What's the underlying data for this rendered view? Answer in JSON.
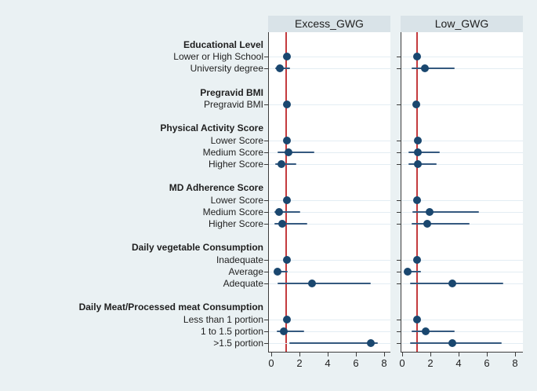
{
  "figure": {
    "background_color": "#eaf1f3",
    "panel_background": "#ffffff",
    "header_background": "#d9e3e8",
    "grid_color": "#e3edf3",
    "axis_color": "#3c3c3c",
    "text_color": "#1f1f1f",
    "dot_color": "#1a476f",
    "ci_color": "#35597f",
    "refline_color": "#c43b3e"
  },
  "chart_data": {
    "type": "scatter",
    "subtype": "forest-plot",
    "legend_position": "none",
    "grid": "horizontal-light",
    "xlim": [
      0,
      8
    ],
    "xticks": [
      "0",
      "2",
      "4",
      "6",
      "8"
    ],
    "refline_x": 1,
    "panels": [
      {
        "label": "Excess_GWG",
        "key": "excess_gwg"
      },
      {
        "label": "Low_GWG",
        "key": "low_gwg"
      }
    ],
    "groups": [
      {
        "header": "Educational Level",
        "rows": [
          {
            "label": "Lower or High School",
            "excess_gwg": {
              "est": 1.05,
              "lo": 0.95,
              "hi": 1.15
            },
            "low_gwg": {
              "est": 1.0,
              "lo": 0.9,
              "hi": 1.1
            }
          },
          {
            "label": "University degree",
            "excess_gwg": {
              "est": 0.55,
              "lo": 0.2,
              "hi": 1.3
            },
            "low_gwg": {
              "est": 1.55,
              "lo": 0.6,
              "hi": 3.65
            }
          }
        ]
      },
      {
        "header": "Pregravid BMI",
        "rows": [
          {
            "label": "Pregravid BMI",
            "excess_gwg": {
              "est": 1.05,
              "lo": 1.0,
              "hi": 1.1
            },
            "low_gwg": {
              "est": 0.95,
              "lo": 0.9,
              "hi": 1.0
            }
          }
        ]
      },
      {
        "header": "Physical Activity Score",
        "rows": [
          {
            "label": "Lower Score",
            "excess_gwg": {
              "est": 1.05,
              "lo": 0.95,
              "hi": 1.15
            },
            "low_gwg": {
              "est": 1.05,
              "lo": 0.95,
              "hi": 1.15
            }
          },
          {
            "label": "Medium Score",
            "excess_gwg": {
              "est": 1.15,
              "lo": 0.4,
              "hi": 3.0
            },
            "low_gwg": {
              "est": 1.05,
              "lo": 0.4,
              "hi": 2.6
            }
          },
          {
            "label": "Higher Score",
            "excess_gwg": {
              "est": 0.65,
              "lo": 0.2,
              "hi": 1.7
            },
            "low_gwg": {
              "est": 1.05,
              "lo": 0.4,
              "hi": 2.4
            }
          }
        ]
      },
      {
        "header": "MD Adherence Score",
        "rows": [
          {
            "label": "Lower Score",
            "excess_gwg": {
              "est": 1.05,
              "lo": 0.95,
              "hi": 1.15
            },
            "low_gwg": {
              "est": 1.0,
              "lo": 0.9,
              "hi": 1.1
            }
          },
          {
            "label": "Medium Score",
            "excess_gwg": {
              "est": 0.5,
              "lo": 0.15,
              "hi": 2.0
            },
            "low_gwg": {
              "est": 1.9,
              "lo": 0.65,
              "hi": 5.4
            }
          },
          {
            "label": "Higher Score",
            "excess_gwg": {
              "est": 0.7,
              "lo": 0.15,
              "hi": 2.5
            },
            "low_gwg": {
              "est": 1.7,
              "lo": 0.6,
              "hi": 4.75
            }
          }
        ]
      },
      {
        "header": "Daily vegetable Consumption",
        "rows": [
          {
            "label": "Inadequate",
            "excess_gwg": {
              "est": 1.05,
              "lo": 0.95,
              "hi": 1.15
            },
            "low_gwg": {
              "est": 1.0,
              "lo": 0.9,
              "hi": 1.1
            }
          },
          {
            "label": "Average",
            "excess_gwg": {
              "est": 0.4,
              "lo": 0.15,
              "hi": 1.1
            },
            "low_gwg": {
              "est": 0.35,
              "lo": 0.1,
              "hi": 1.3
            }
          },
          {
            "label": "Adequate",
            "excess_gwg": {
              "est": 2.85,
              "lo": 0.4,
              "hi": 7.0
            },
            "low_gwg": {
              "est": 3.5,
              "lo": 0.5,
              "hi": 7.1
            }
          }
        ]
      },
      {
        "header": "Daily Meat/Processed meat Consumption",
        "rows": [
          {
            "label": "Less than 1 portion",
            "excess_gwg": {
              "est": 1.05,
              "lo": 0.95,
              "hi": 1.15
            },
            "low_gwg": {
              "est": 1.0,
              "lo": 0.9,
              "hi": 1.1
            }
          },
          {
            "label": "1 to 1.5 portion",
            "excess_gwg": {
              "est": 0.85,
              "lo": 0.35,
              "hi": 2.3
            },
            "low_gwg": {
              "est": 1.6,
              "lo": 0.6,
              "hi": 3.65
            }
          },
          {
            "label": ">1.5 portion",
            "excess_gwg": {
              "est": 7.0,
              "lo": 1.2,
              "hi": 7.5
            },
            "low_gwg": {
              "est": 3.5,
              "lo": 0.5,
              "hi": 7.0
            }
          }
        ]
      }
    ]
  }
}
